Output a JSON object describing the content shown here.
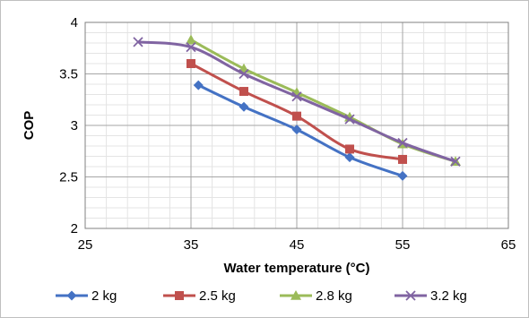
{
  "chart_data": {
    "type": "line",
    "xlabel": "Water temperature (°C)",
    "ylabel": "COP",
    "xlim": [
      25,
      65
    ],
    "ylim": [
      2,
      4
    ],
    "xticks": [
      25,
      35,
      45,
      55,
      65
    ],
    "yticks": [
      2,
      2.5,
      3,
      3.5,
      4
    ],
    "x_minor_step": 2,
    "y_minor_step": 0.1,
    "grid": true,
    "legend": "bottom",
    "series": [
      {
        "name": "2 kg",
        "color": "#4472C4",
        "marker": "diamond",
        "points": [
          [
            35.7,
            3.39
          ],
          [
            40,
            3.18
          ],
          [
            45,
            2.96
          ],
          [
            50,
            2.69
          ],
          [
            55,
            2.51
          ]
        ]
      },
      {
        "name": "2.5 kg",
        "color": "#C0504D",
        "marker": "square",
        "points": [
          [
            35,
            3.6
          ],
          [
            40,
            3.33
          ],
          [
            45,
            3.09
          ],
          [
            50,
            2.77
          ],
          [
            55,
            2.67
          ]
        ]
      },
      {
        "name": "2.8 kg",
        "color": "#9BBB59",
        "marker": "triangle",
        "points": [
          [
            35,
            3.83
          ],
          [
            40,
            3.55
          ],
          [
            45,
            3.32
          ],
          [
            50,
            3.08
          ],
          [
            55,
            2.82
          ],
          [
            60,
            2.65
          ]
        ]
      },
      {
        "name": "3.2 kg",
        "color": "#8064A2",
        "marker": "x",
        "points": [
          [
            30,
            3.81
          ],
          [
            35,
            3.76
          ],
          [
            40,
            3.5
          ],
          [
            45,
            3.28
          ],
          [
            50,
            3.06
          ],
          [
            55,
            2.83
          ],
          [
            60,
            2.65
          ]
        ]
      }
    ]
  }
}
